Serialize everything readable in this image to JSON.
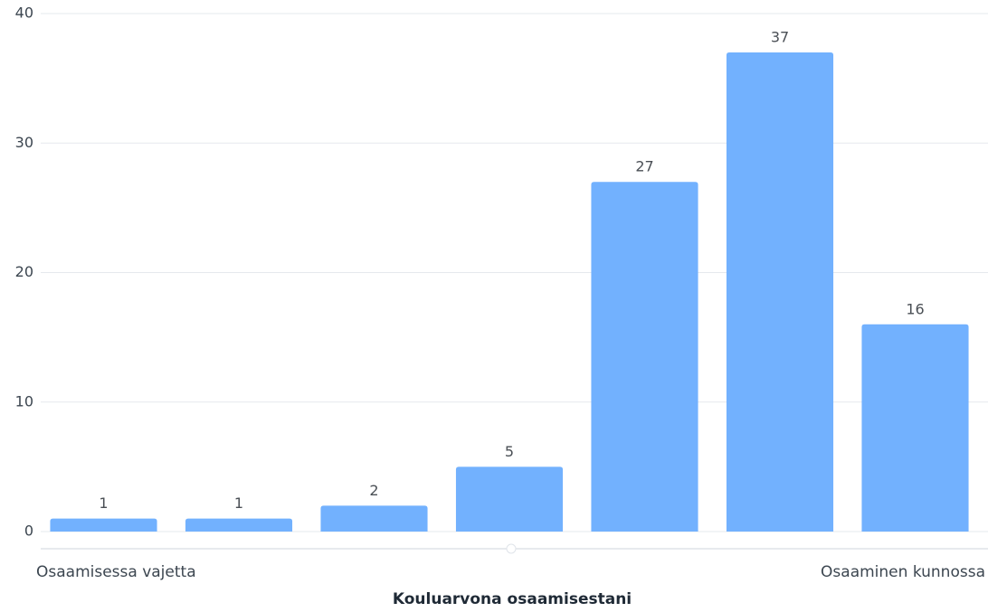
{
  "chart_data": {
    "type": "bar",
    "x_label": "Kouluarvona osaamisestani",
    "categories": [
      "Osaamisessa vajetta",
      null,
      null,
      null,
      null,
      null,
      "Osaaminen kunnossa"
    ],
    "values": [
      1,
      1,
      2,
      5,
      27,
      37,
      16
    ],
    "color": "#72b1fe",
    "ylim": [
      0,
      40
    ],
    "yticks": [
      0,
      10,
      20,
      30,
      40
    ],
    "grid": true
  }
}
